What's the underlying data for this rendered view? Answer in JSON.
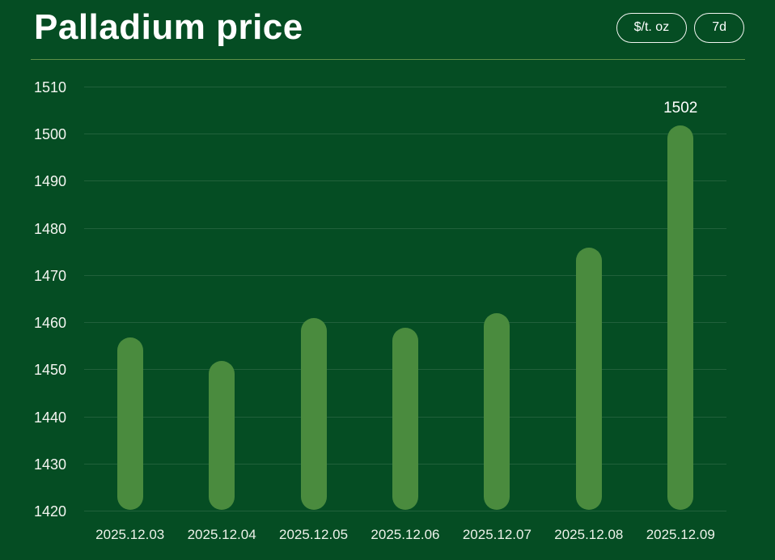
{
  "header": {
    "title": "Palladium price",
    "unit_button": "$/t. oz",
    "range_button": "7d"
  },
  "colors": {
    "background": "#054d23",
    "bar": "#4a8b3e",
    "divider": "#5f9148",
    "grid": "rgba(235,245,235,0.12)",
    "text": "#ffffff"
  },
  "chart_data": {
    "type": "bar",
    "title": "Palladium price",
    "categories": [
      "2025.12.03",
      "2025.12.04",
      "2025.12.05",
      "2025.12.06",
      "2025.12.07",
      "2025.12.08",
      "2025.12.09"
    ],
    "values": [
      1457,
      1452,
      1461,
      1459,
      1462,
      1476,
      1502
    ],
    "bar_labels": [
      "",
      "",
      "",
      "",
      "",
      "",
      "1502"
    ],
    "ylim": [
      1420,
      1510
    ],
    "yticks": [
      1420,
      1430,
      1440,
      1450,
      1460,
      1470,
      1480,
      1490,
      1500,
      1510
    ],
    "xlabel": "",
    "ylabel": "",
    "grid": "horizontal",
    "legend": "none"
  }
}
